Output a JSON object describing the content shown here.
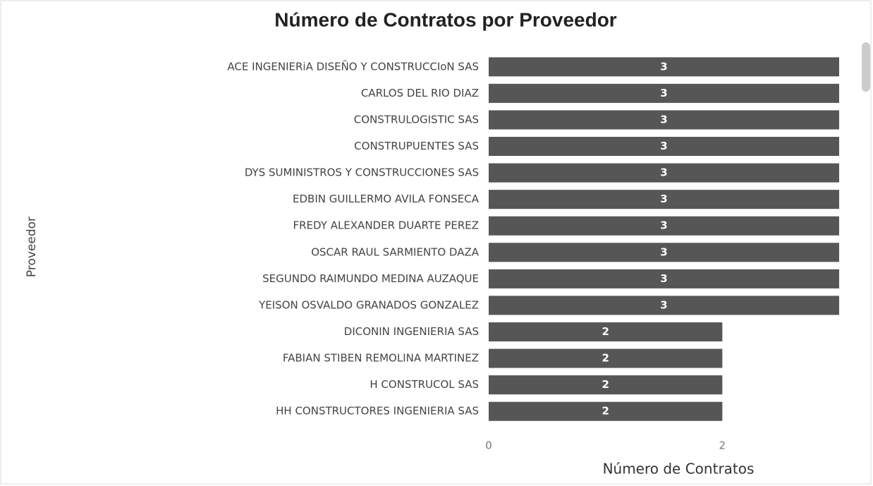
{
  "chart_data": {
    "type": "bar",
    "orientation": "horizontal",
    "title": "Número de Contratos por Proveedor",
    "x_label": "Número de Contratos",
    "y_label": "Proveedor",
    "categories": [
      "ACE INGENIERiA DISEÑO Y CONSTRUCCIoN SAS",
      "CARLOS DEL RIO DIAZ",
      "CONSTRULOGISTIC SAS",
      "CONSTRUPUENTES SAS",
      "DYS SUMINISTROS Y CONSTRUCCIONES SAS",
      "EDBIN GUILLERMO AVILA FONSECA",
      "FREDY ALEXANDER DUARTE PEREZ",
      "OSCAR RAUL SARMIENTO DAZA",
      "SEGUNDO RAIMUNDO MEDINA AUZAQUE",
      "YEISON OSVALDO GRANADOS GONZALEZ",
      "DICONIN INGENIERIA SAS",
      "FABIAN STIBEN REMOLINA MARTINEZ",
      "H CONSTRUCOL SAS",
      "HH CONSTRUCTORES INGENIERIA SAS"
    ],
    "values": [
      3,
      3,
      3,
      3,
      3,
      3,
      3,
      3,
      3,
      3,
      2,
      2,
      2,
      2
    ],
    "color": "#565656",
    "xlim": [
      0,
      3
    ],
    "xticks": [
      0,
      2
    ],
    "grid": false
  }
}
